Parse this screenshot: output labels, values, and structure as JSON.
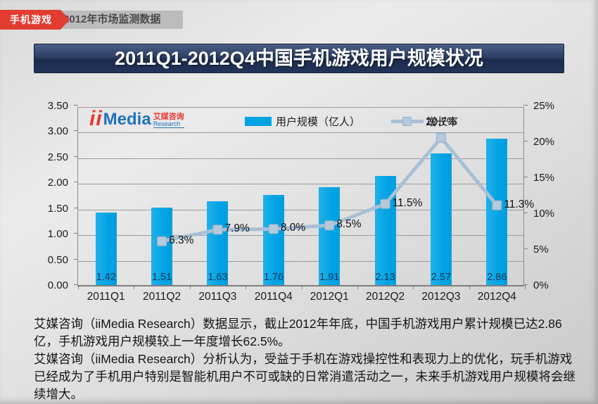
{
  "header": {
    "tag": "手机游戏",
    "subtitle": "2012年市场监测数据"
  },
  "title": "2011Q1-2012Q4中国手机游戏用户规模状况",
  "logo": {
    "prefix": "ii",
    "name": "Media",
    "cn": "艾媒咨询",
    "sub": "Research"
  },
  "colors": {
    "bar": "#00A3E4",
    "line": "#A8C0D6",
    "marker_fill": "#B5C9DB",
    "marker_stroke": "#96B1C9",
    "title_bg": "#23345A",
    "badge": "#E23B30"
  },
  "chart_data": {
    "type": "combo-bar-line",
    "title": "2011Q1-2012Q4中国手机游戏用户规模状况",
    "categories": [
      "2011Q1",
      "2011Q2",
      "2011Q3",
      "2011Q4",
      "2012Q1",
      "2012Q2",
      "2012Q3",
      "2012Q4"
    ],
    "series": [
      {
        "name": "用户规模（亿人）",
        "type": "bar",
        "axis": "left",
        "color": "#00A3E4",
        "values": [
          1.42,
          1.51,
          1.63,
          1.76,
          1.91,
          2.13,
          2.57,
          2.86
        ],
        "labels": [
          "1.42",
          "1.51",
          "1.63",
          "1.76",
          "1.91",
          "2.13",
          "2.57",
          "2.86"
        ]
      },
      {
        "name": "增长率",
        "type": "line",
        "axis": "right",
        "color": "#A8C0D6",
        "values": [
          null,
          6.3,
          7.9,
          8.0,
          8.5,
          11.5,
          20.7,
          11.3
        ],
        "labels": [
          "",
          "6.3%",
          "7.9%",
          "8.0%",
          "8.5%",
          "11.5%",
          "20.7%",
          "11.3%"
        ]
      }
    ],
    "left_axis": {
      "min": 0,
      "max": 3.5,
      "ticks": [
        "0.00",
        "0.50",
        "1.00",
        "1.50",
        "2.00",
        "2.50",
        "3.00",
        "3.50"
      ]
    },
    "right_axis": {
      "min": 0,
      "max": 25,
      "ticks": [
        "0%",
        "5%",
        "10%",
        "15%",
        "20%",
        "25%"
      ]
    },
    "grid": true,
    "legend_position": "top-center"
  },
  "footer": {
    "para1": "艾媒咨询（iiMedia Research）数据显示，截止2012年年底，中国手机游戏用户累计规模已达2.86亿，手机游戏用户规模较上一年度增长62.5%。",
    "para2": "艾媒咨询（iiMedia Research）分析认为，受益于手机在游戏操控性和表现力上的优化，玩手机游戏已经成为了手机用户特别是智能机用户不可或缺的日常消遣活动之一，未来手机游戏用户规模将会继续增大。"
  }
}
